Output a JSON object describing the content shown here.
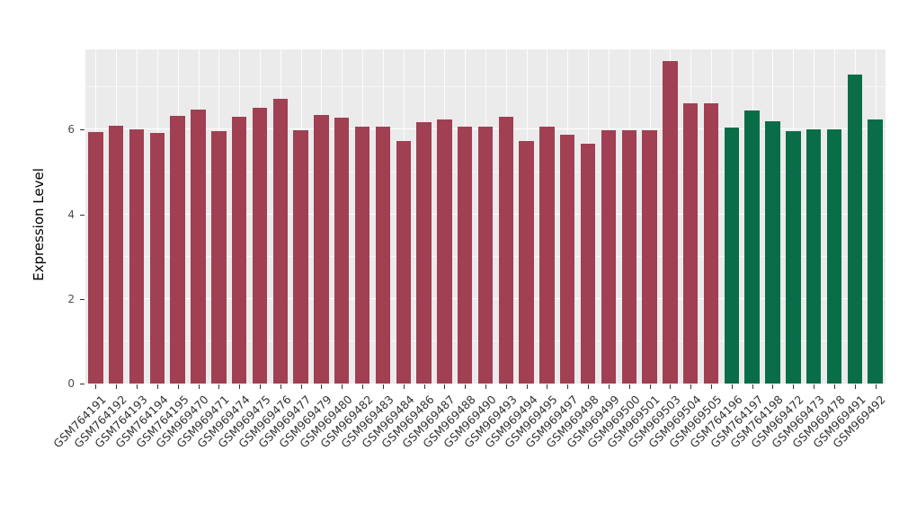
{
  "chart_data": {
    "type": "bar",
    "title": "",
    "xlabel": "",
    "ylabel": "Expression Level",
    "ylim": [
      0,
      7.9
    ],
    "yticks": [
      0,
      2,
      4,
      6
    ],
    "ytick_labels": [
      "0",
      "2",
      "4",
      "6"
    ],
    "grid": "major-white-on-gray, minor-white",
    "legend": "none",
    "panel_background": "#EBEBEB",
    "colors": {
      "groupA": "#A04052",
      "groupB": "#096E47"
    },
    "bars": [
      {
        "label": "GSM764191",
        "value": 5.95,
        "group": "groupA"
      },
      {
        "label": "GSM764192",
        "value": 6.1,
        "group": "groupA"
      },
      {
        "label": "GSM764193",
        "value": 6.0,
        "group": "groupA"
      },
      {
        "label": "GSM764194",
        "value": 5.92,
        "group": "groupA"
      },
      {
        "label": "GSM764195",
        "value": 6.33,
        "group": "groupA"
      },
      {
        "label": "GSM969470",
        "value": 6.48,
        "group": "groupA"
      },
      {
        "label": "GSM969471",
        "value": 5.97,
        "group": "groupA"
      },
      {
        "label": "GSM969474",
        "value": 6.3,
        "group": "groupA"
      },
      {
        "label": "GSM969475",
        "value": 6.52,
        "group": "groupA"
      },
      {
        "label": "GSM969476",
        "value": 6.73,
        "group": "groupA"
      },
      {
        "label": "GSM969477",
        "value": 5.98,
        "group": "groupA"
      },
      {
        "label": "GSM969479",
        "value": 6.35,
        "group": "groupA"
      },
      {
        "label": "GSM969480",
        "value": 6.28,
        "group": "groupA"
      },
      {
        "label": "GSM969482",
        "value": 6.08,
        "group": "groupA"
      },
      {
        "label": "GSM969483",
        "value": 6.07,
        "group": "groupA"
      },
      {
        "label": "GSM969484",
        "value": 5.73,
        "group": "groupA"
      },
      {
        "label": "GSM969486",
        "value": 6.18,
        "group": "groupA"
      },
      {
        "label": "GSM969487",
        "value": 6.25,
        "group": "groupA"
      },
      {
        "label": "GSM969488",
        "value": 6.08,
        "group": "groupA"
      },
      {
        "label": "GSM969490",
        "value": 6.08,
        "group": "groupA"
      },
      {
        "label": "GSM969493",
        "value": 6.3,
        "group": "groupA"
      },
      {
        "label": "GSM969494",
        "value": 5.73,
        "group": "groupA"
      },
      {
        "label": "GSM969495",
        "value": 6.08,
        "group": "groupA"
      },
      {
        "label": "GSM969497",
        "value": 5.88,
        "group": "groupA"
      },
      {
        "label": "GSM969498",
        "value": 5.68,
        "group": "groupA"
      },
      {
        "label": "GSM969499",
        "value": 5.98,
        "group": "groupA"
      },
      {
        "label": "GSM969500",
        "value": 5.98,
        "group": "groupA"
      },
      {
        "label": "GSM969501",
        "value": 5.98,
        "group": "groupA"
      },
      {
        "label": "GSM969503",
        "value": 7.62,
        "group": "groupA"
      },
      {
        "label": "GSM969504",
        "value": 6.62,
        "group": "groupA"
      },
      {
        "label": "GSM969505",
        "value": 6.62,
        "group": "groupA"
      },
      {
        "label": "GSM764196",
        "value": 6.05,
        "group": "groupB"
      },
      {
        "label": "GSM764197",
        "value": 6.45,
        "group": "groupB"
      },
      {
        "label": "GSM764198",
        "value": 6.2,
        "group": "groupB"
      },
      {
        "label": "GSM969472",
        "value": 5.97,
        "group": "groupB"
      },
      {
        "label": "GSM969473",
        "value": 6.0,
        "group": "groupB"
      },
      {
        "label": "GSM969478",
        "value": 6.02,
        "group": "groupB"
      },
      {
        "label": "GSM969491",
        "value": 7.3,
        "group": "groupB"
      },
      {
        "label": "GSM969492",
        "value": 6.25,
        "group": "groupB"
      }
    ]
  }
}
